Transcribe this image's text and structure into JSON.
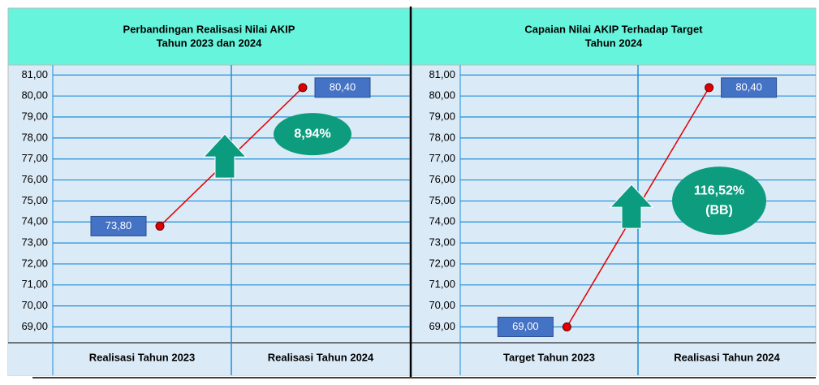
{
  "chart_data": [
    {
      "type": "line",
      "title": "Perbandingan Realisasi Nilai AKIP",
      "subtitle": "Tahun 2023 dan 2024",
      "categories": [
        "Realisasi Tahun 2023",
        "Realisasi Tahun 2024"
      ],
      "series": [
        {
          "color": "#e00000",
          "values": [
            73.8,
            80.4
          ],
          "value_labels": [
            "73,80",
            "80,40"
          ]
        }
      ],
      "ylim": [
        68.4,
        81.4
      ],
      "yticks": [
        {
          "value": 69,
          "label": "69,00"
        },
        {
          "value": 70,
          "label": "70,00"
        },
        {
          "value": 71,
          "label": "71,00"
        },
        {
          "value": 72,
          "label": "72,00"
        },
        {
          "value": 73,
          "label": "73,00"
        },
        {
          "value": 74,
          "label": "74,00"
        },
        {
          "value": 75,
          "label": "75,00"
        },
        {
          "value": 76,
          "label": "76,00"
        },
        {
          "value": 77,
          "label": "77,00"
        },
        {
          "value": 78,
          "label": "78,00"
        },
        {
          "value": 79,
          "label": "79,00"
        },
        {
          "value": 80,
          "label": "80,00"
        },
        {
          "value": 81,
          "label": "81,00"
        }
      ],
      "grid": true,
      "annotations": [
        "8,94%"
      ]
    },
    {
      "type": "line",
      "title": "Capaian Nilai AKIP Terhadap Target",
      "subtitle": "Tahun 2024",
      "categories": [
        "Target Tahun 2023",
        "Realisasi Tahun 2024"
      ],
      "series": [
        {
          "color": "#e00000",
          "values": [
            69.0,
            80.4
          ],
          "value_labels": [
            "69,00",
            "80,40"
          ]
        }
      ],
      "ylim": [
        68.4,
        81.4
      ],
      "yticks": [
        {
          "value": 69,
          "label": "69,00"
        },
        {
          "value": 70,
          "label": "70,00"
        },
        {
          "value": 71,
          "label": "71,00"
        },
        {
          "value": 72,
          "label": "72,00"
        },
        {
          "value": 73,
          "label": "73,00"
        },
        {
          "value": 74,
          "label": "74,00"
        },
        {
          "value": 75,
          "label": "75,00"
        },
        {
          "value": 76,
          "label": "76,00"
        },
        {
          "value": 77,
          "label": "77,00"
        },
        {
          "value": 78,
          "label": "78,00"
        },
        {
          "value": 79,
          "label": "79,00"
        },
        {
          "value": 80,
          "label": "80,00"
        },
        {
          "value": 81,
          "label": "81,00"
        }
      ],
      "grid": true,
      "annotations": [
        "116,52%",
        "(BB)"
      ]
    }
  ]
}
